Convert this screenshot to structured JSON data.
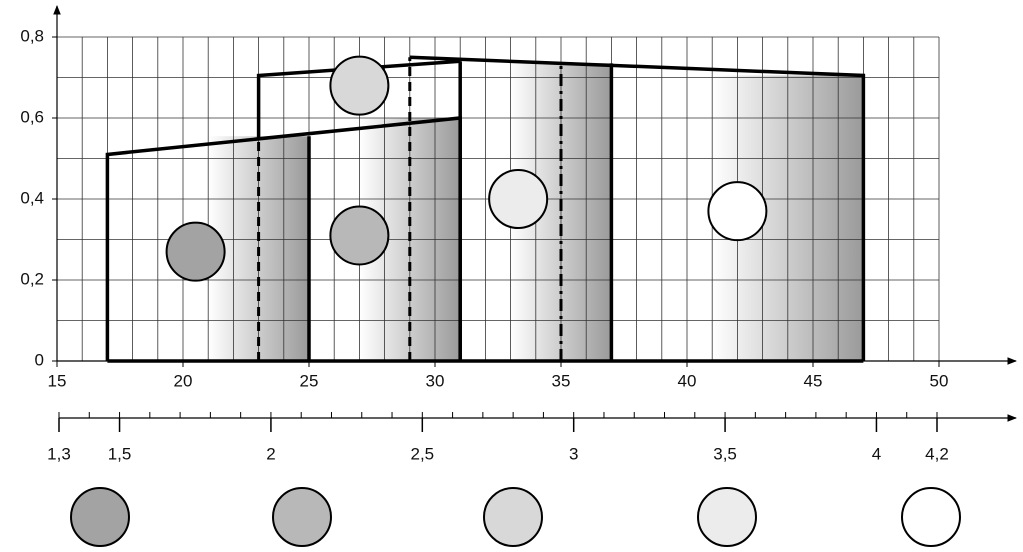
{
  "x_axis": {
    "lim": [
      15,
      50
    ],
    "ticks": [
      15,
      20,
      25,
      30,
      35,
      40,
      45,
      50
    ]
  },
  "y_axis": {
    "lim": [
      0,
      0.8
    ],
    "ticks": [
      0,
      {
        "value": 0.2,
        "label": "0,2"
      },
      {
        "value": 0.4,
        "label": "0,4"
      },
      {
        "value": 0.6,
        "label": "0,6"
      },
      {
        "value": 0.8,
        "label": "0,8"
      }
    ]
  },
  "scale_axis": {
    "lim": [
      {
        "value": 1.3,
        "label": "1,3"
      },
      {
        "value": 4.2,
        "label": "4,2"
      }
    ],
    "ticks": [
      {
        "value": 1.5,
        "label": "1,5"
      },
      2,
      {
        "value": 2.5,
        "label": "2,5"
      },
      3,
      {
        "value": 3.5,
        "label": "3,5"
      },
      4
    ]
  }
}
